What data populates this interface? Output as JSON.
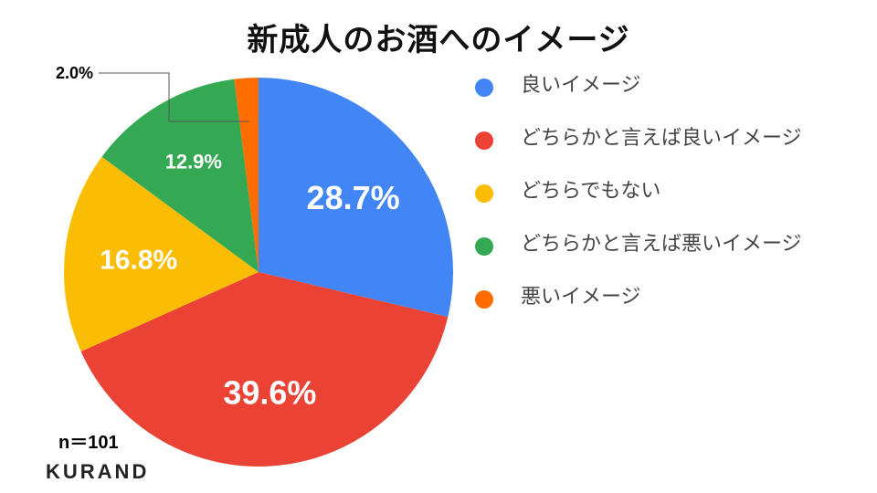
{
  "chart_data": {
    "type": "pie",
    "title": "新成人のお酒へのイメージ",
    "categories": [
      "良いイメージ",
      "どちらかと言えば良いイメージ",
      "どちらでもない",
      "どちらかと言えば悪いイメージ",
      "悪いイメージ"
    ],
    "values": [
      28.7,
      39.6,
      16.8,
      12.9,
      2.0
    ],
    "value_labels": [
      "28.7%",
      "39.6%",
      "16.8%",
      "12.9%",
      "2.0%"
    ],
    "colors": [
      "#4285F4",
      "#EA4335",
      "#FBBC04",
      "#34A853",
      "#FF6D01"
    ],
    "legend_position": "right",
    "start_angle": "12 o'clock",
    "direction": "clockwise"
  },
  "legend": [
    {
      "label": "良いイメージ",
      "color": "#4285F4"
    },
    {
      "label": "どちらかと言えば良いイメージ",
      "color": "#EA4335"
    },
    {
      "label": "どちらでもない",
      "color": "#FBBC04"
    },
    {
      "label": "どちらかと言えば悪いイメージ",
      "color": "#34A853"
    },
    {
      "label": "悪いイメージ",
      "color": "#FF6D01"
    }
  ],
  "footer": {
    "sample_size": "n＝101",
    "brand": "KURAND"
  }
}
